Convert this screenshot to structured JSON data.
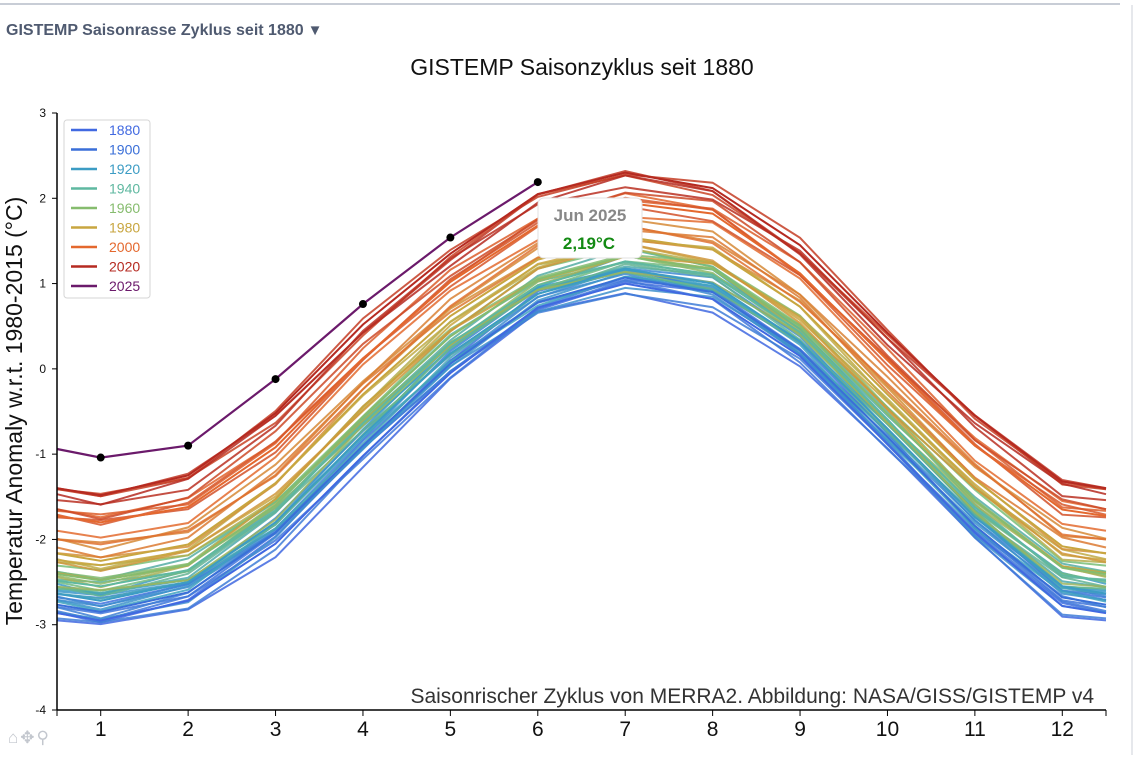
{
  "dropdown": {
    "label": "GISTEMP Saisonrasse Zyklus seit 1880",
    "arrow": "▼"
  },
  "toolbar": {
    "icons": [
      "home-icon",
      "pan-icon",
      "zoom-icon"
    ]
  },
  "tooltip": {
    "label": "Jun 2025",
    "value": "2,19°C",
    "value_color": "#138a13"
  },
  "chart_data": {
    "type": "line",
    "title": "GISTEMP Saisonzyklus seit 1880",
    "xlabel": "",
    "ylabel": "Temperatur Anomaly w.r.t. 1980-2015 (°C)",
    "annotation": "Saisonrischer Zyklus von MERRA2. Abbildung: NASA/GISS/GISTEMP v4",
    "xlim": [
      0.5,
      12.5
    ],
    "ylim": [
      -4,
      3
    ],
    "x_ticks": [
      1,
      2,
      3,
      4,
      5,
      6,
      7,
      8,
      9,
      10,
      11,
      12
    ],
    "y_ticks": [
      -4,
      -3,
      -2,
      -1,
      0,
      1,
      2,
      3
    ],
    "legend_position": "top-left",
    "series": [
      {
        "name": "1880",
        "color": "#4169e1",
        "values": [
          -2.95,
          -2.72,
          -2.05,
          -1.02,
          -0.05,
          0.72,
          1.0,
          0.82,
          0.15,
          -0.88,
          -1.92,
          -2.78
        ]
      },
      {
        "name": "1900",
        "color": "#3a6fd8",
        "values": [
          -2.85,
          -2.62,
          -1.92,
          -0.9,
          0.06,
          0.78,
          1.07,
          0.9,
          0.22,
          -0.8,
          -1.84,
          -2.68
        ]
      },
      {
        "name": "1920",
        "color": "#3c9cc4",
        "values": [
          -2.72,
          -2.5,
          -1.8,
          -0.78,
          0.18,
          0.88,
          1.17,
          1.0,
          0.32,
          -0.7,
          -1.74,
          -2.55
        ]
      },
      {
        "name": "1940",
        "color": "#5fb8a0",
        "values": [
          -2.55,
          -2.36,
          -1.66,
          -0.64,
          0.3,
          0.98,
          1.26,
          1.1,
          0.43,
          -0.6,
          -1.62,
          -2.42
        ]
      },
      {
        "name": "1960",
        "color": "#86bc6e",
        "values": [
          -2.48,
          -2.3,
          -1.6,
          -0.56,
          0.38,
          1.05,
          1.32,
          1.17,
          0.5,
          -0.53,
          -1.54,
          -2.33
        ]
      },
      {
        "name": "1980",
        "color": "#c8a640",
        "values": [
          -2.25,
          -2.06,
          -1.34,
          -0.3,
          0.62,
          1.28,
          1.55,
          1.4,
          0.73,
          -0.3,
          -1.3,
          -2.08
        ]
      },
      {
        "name": "2000",
        "color": "#e4682e",
        "values": [
          -1.8,
          -1.62,
          -0.92,
          0.12,
          1.02,
          1.68,
          1.95,
          1.82,
          1.12,
          0.1,
          -0.9,
          -1.65
        ]
      },
      {
        "name": "2020",
        "color": "#b52a21",
        "values": [
          -1.48,
          -1.25,
          -0.52,
          0.52,
          1.35,
          2.05,
          2.3,
          2.12,
          1.45,
          0.42,
          -0.55,
          -1.32
        ]
      },
      {
        "name": "2025",
        "color": "#6b1a6b",
        "values": [
          -1.04,
          -0.9,
          -0.12,
          0.76,
          1.54,
          2.19
        ]
      }
    ]
  }
}
